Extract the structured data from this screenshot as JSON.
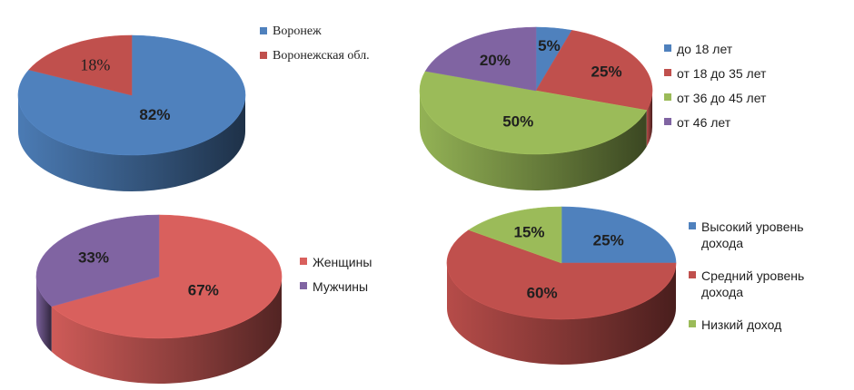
{
  "chart_data": [
    {
      "type": "pie",
      "categories": [
        "Воронеж",
        "Воронежская обл."
      ],
      "values": [
        82,
        18
      ],
      "data_labels": [
        "82%",
        "18%"
      ],
      "colors": [
        "#4f81bd",
        "#c0504d"
      ],
      "legend_position": "right",
      "style": "3d"
    },
    {
      "type": "pie",
      "categories": [
        "до 18 лет",
        "от 18 до 35 лет",
        "от 36 до 45 лет",
        "от 46 лет"
      ],
      "values": [
        5,
        25,
        50,
        20
      ],
      "data_labels": [
        "5%",
        "25%",
        "50%",
        "20%"
      ],
      "colors": [
        "#4f81bd",
        "#c0504d",
        "#9bbb59",
        "#8064a2"
      ],
      "legend_position": "right",
      "style": "3d"
    },
    {
      "type": "pie",
      "categories": [
        "Женщины",
        "Мужчины"
      ],
      "values": [
        67,
        33
      ],
      "data_labels": [
        "67%",
        "33%"
      ],
      "colors": [
        "#d9605d",
        "#8064a2"
      ],
      "legend_position": "right",
      "style": "3d"
    },
    {
      "type": "pie",
      "categories": [
        "Высокий уровень дохода",
        "Средний уровень дохода",
        "Низкий доход"
      ],
      "legend_lines": [
        [
          "Высокий уровень",
          "дохода"
        ],
        [
          "Средний уровень",
          "дохода"
        ],
        [
          "Низкий доход"
        ]
      ],
      "values": [
        25,
        60,
        15
      ],
      "data_labels": [
        "25%",
        "60%",
        "15%"
      ],
      "colors": [
        "#4f81bd",
        "#c0504d",
        "#9bbb59"
      ],
      "legend_position": "right",
      "style": "3d"
    }
  ]
}
